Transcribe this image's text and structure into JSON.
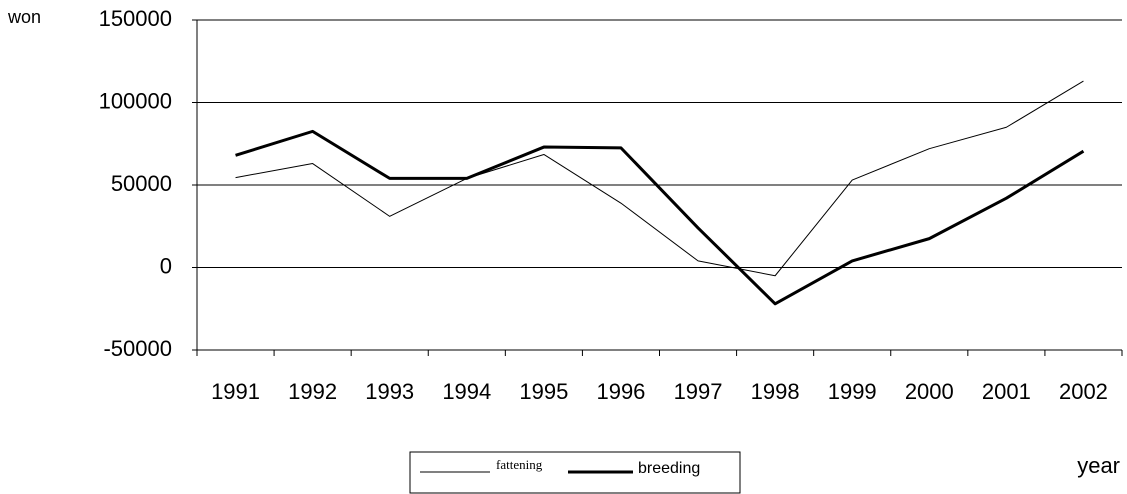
{
  "chart_data": {
    "type": "line",
    "y_label": "won",
    "x_label": "year",
    "categories": [
      "1991",
      "1992",
      "1993",
      "1994",
      "1995",
      "1996",
      "1997",
      "1998",
      "1999",
      "2000",
      "2001",
      "2002"
    ],
    "series": [
      {
        "name": "fattening",
        "color": "#000000",
        "values": [
          54500,
          63000,
          31000,
          54000,
          68500,
          39000,
          4000,
          -5000,
          53000,
          72000,
          85000,
          113000
        ]
      },
      {
        "name": "breeding",
        "color": "#000000",
        "values": [
          68000,
          82500,
          54000,
          54000,
          73000,
          72500,
          24000,
          -22000,
          4000,
          17500,
          42000,
          70500
        ]
      }
    ],
    "ylim": [
      -50000,
      150000
    ],
    "yticks": [
      -50000,
      0,
      50000,
      100000,
      150000
    ],
    "grid": true
  }
}
